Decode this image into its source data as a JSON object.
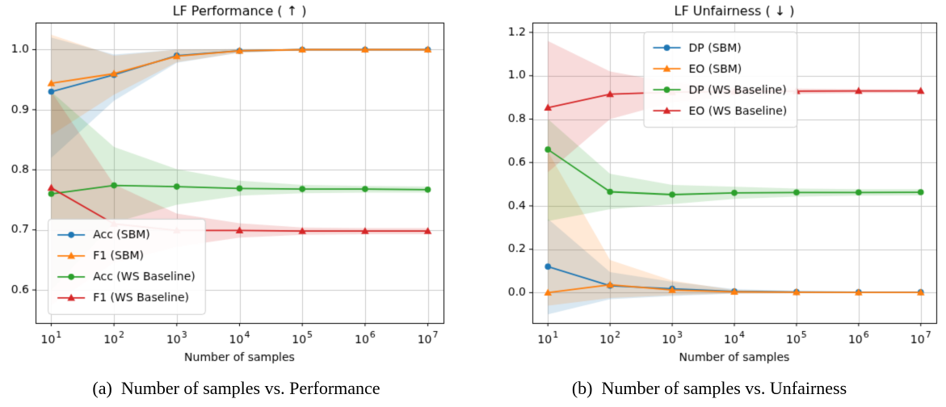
{
  "figure": {
    "captions": {
      "a": "(a)  Number of samples vs. Performance",
      "b": "(b)  Number of samples vs. Unfairness"
    }
  },
  "chart_data": [
    {
      "type": "line",
      "title": "LF Performance ( ↑ )",
      "xlabel": "Number of samples",
      "xscale": "log",
      "x": [
        10,
        100,
        1000,
        10000,
        100000,
        1000000,
        10000000
      ],
      "x_tick_exponents": [
        1,
        2,
        3,
        4,
        5,
        6,
        7
      ],
      "xlog_range": [
        0.75,
        7.25
      ],
      "ylim": [
        0.545,
        1.045
      ],
      "yticks": [
        0.6,
        0.7,
        0.8,
        0.9,
        1.0
      ],
      "grid": true,
      "legend": {
        "loc": "lower-left",
        "x": 0.03,
        "y": 0.03
      },
      "series": [
        {
          "name": "Acc (SBM)",
          "color": "#1f77b4",
          "marker": "circle",
          "values": [
            0.93,
            0.958,
            0.99,
            0.998,
            1.0,
            1.0,
            1.0
          ],
          "band_lower": [
            0.82,
            0.915,
            0.978,
            0.995,
            0.999,
            0.999,
            0.999
          ],
          "band_upper": [
            1.02,
            0.992,
            1.0,
            1.001,
            1.001,
            1.001,
            1.001
          ]
        },
        {
          "name": "F1 (SBM)",
          "color": "#ff7f0e",
          "marker": "triangle",
          "values": [
            0.944,
            0.96,
            0.989,
            0.998,
            1.0,
            1.0,
            1.0
          ],
          "band_lower": [
            0.858,
            0.925,
            0.979,
            0.995,
            0.999,
            0.999,
            0.999
          ],
          "band_upper": [
            1.025,
            0.99,
            1.0,
            1.001,
            1.001,
            1.001,
            1.001
          ]
        },
        {
          "name": "Acc (WS Baseline)",
          "color": "#2ca02c",
          "marker": "circle",
          "values": [
            0.76,
            0.774,
            0.772,
            0.769,
            0.768,
            0.768,
            0.767
          ],
          "band_lower": [
            0.6,
            0.712,
            0.742,
            0.757,
            0.761,
            0.762,
            0.762
          ],
          "band_upper": [
            0.93,
            0.838,
            0.801,
            0.782,
            0.775,
            0.773,
            0.772
          ]
        },
        {
          "name": "F1 (WS Baseline)",
          "color": "#d62728",
          "marker": "triangle",
          "values": [
            0.77,
            0.71,
            0.699,
            0.699,
            0.698,
            0.698,
            0.698
          ],
          "band_lower": [
            0.575,
            0.645,
            0.672,
            0.687,
            0.692,
            0.693,
            0.693
          ],
          "band_upper": [
            0.93,
            0.776,
            0.727,
            0.711,
            0.704,
            0.703,
            0.703
          ]
        }
      ]
    },
    {
      "type": "line",
      "title": "LF Unfairness ( ↓ )",
      "xlabel": "Number of samples",
      "xscale": "log",
      "x": [
        10,
        100,
        1000,
        10000,
        100000,
        1000000,
        10000000
      ],
      "x_tick_exponents": [
        1,
        2,
        3,
        4,
        5,
        6,
        7
      ],
      "xlog_range": [
        0.75,
        7.25
      ],
      "ylim": [
        -0.14,
        1.245
      ],
      "yticks": [
        0.0,
        0.2,
        0.4,
        0.6,
        0.8,
        1.0,
        1.2
      ],
      "grid": true,
      "legend": {
        "loc": "upper-left",
        "x": 0.275,
        "y": 0.97
      },
      "series": [
        {
          "name": "DP (SBM)",
          "color": "#1f77b4",
          "marker": "circle",
          "values": [
            0.12,
            0.032,
            0.018,
            0.006,
            0.003,
            0.002,
            0.002
          ],
          "band_lower": [
            -0.1,
            -0.03,
            -0.015,
            -0.004,
            -0.002,
            -0.001,
            -0.001
          ],
          "band_upper": [
            0.34,
            0.095,
            0.05,
            0.016,
            0.008,
            0.005,
            0.005
          ]
        },
        {
          "name": "EO (SBM)",
          "color": "#ff7f0e",
          "marker": "triangle",
          "values": [
            0.0,
            0.036,
            0.012,
            0.004,
            0.002,
            0.001,
            0.001
          ],
          "band_lower": [
            -0.06,
            -0.025,
            -0.012,
            -0.004,
            -0.002,
            -0.001,
            -0.001
          ],
          "band_upper": [
            0.65,
            0.15,
            0.055,
            0.012,
            0.006,
            0.004,
            0.004
          ]
        },
        {
          "name": "DP (WS Baseline)",
          "color": "#2ca02c",
          "marker": "circle",
          "values": [
            0.66,
            0.465,
            0.452,
            0.46,
            0.462,
            0.462,
            0.463
          ],
          "band_lower": [
            0.33,
            0.385,
            0.408,
            0.432,
            0.443,
            0.447,
            0.448
          ],
          "band_upper": [
            0.8,
            0.548,
            0.497,
            0.488,
            0.48,
            0.477,
            0.477
          ]
        },
        {
          "name": "EO (WS Baseline)",
          "color": "#d62728",
          "marker": "triangle",
          "values": [
            0.853,
            0.915,
            0.924,
            0.927,
            0.929,
            0.93,
            0.93
          ],
          "band_lower": [
            0.555,
            0.8,
            0.878,
            0.905,
            0.916,
            0.92,
            0.921
          ],
          "band_upper": [
            1.16,
            1.02,
            0.968,
            0.948,
            0.941,
            0.938,
            0.937
          ]
        }
      ]
    }
  ]
}
